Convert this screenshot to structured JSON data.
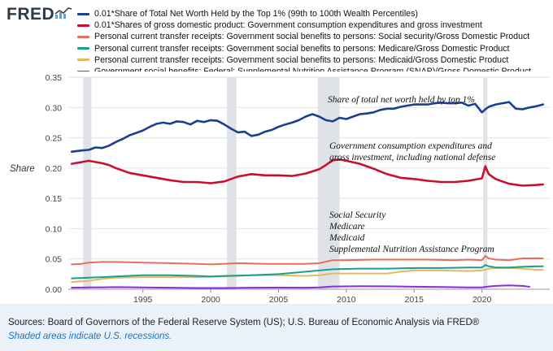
{
  "logo": {
    "text": "FRED",
    "mark": "fred-chart-mark-icon"
  },
  "legend": [
    {
      "label": "0.01*Share of Total Net Worth Held by the Top 1% (99th to 100th Wealth Percentiles)",
      "color": "#1a3f8f"
    },
    {
      "label": "0.01*Shares of gross domestic product: Government consumption expenditures and gross investment",
      "color": "#c8102e"
    },
    {
      "label": "Personal current transfer receipts: Government social benefits to persons: Social security/Gross Domestic Product",
      "color": "#e8705a"
    },
    {
      "label": "Personal current transfer receipts: Government social benefits to persons: Medicare/Gross Domestic Product",
      "color": "#1a9e8f"
    },
    {
      "label": "Personal current transfer receipts: Government social benefits to persons: Medicaid/Gross Domestic Product",
      "color": "#e8b860"
    },
    {
      "label": "Government social benefits: Federal: Supplemental Nutrition Assistance Program (SNAP)/Gross Domestic Product",
      "color": "#8a2be2"
    }
  ],
  "annotations": {
    "top1": "Share of total net worth held by top 1%",
    "gov1": "Government consumption expenditures and",
    "gov2": "gross investment, including national defense",
    "ss": "Social Security",
    "medicare": "Medicare",
    "medicaid": "Medicaid",
    "snap": "Supplemental Nutrition Assistance Program"
  },
  "footer": {
    "source": "Sources: Board of Governors of the Federal Reserve System (US); U.S. Bureau of Economic Analysis via FRED®",
    "shaded_note": "Shaded areas indicate U.S. recessions."
  },
  "chart_data": {
    "type": "line",
    "ylabel": "Share",
    "xlim": [
      1989.5,
      2025.0
    ],
    "ylim": [
      0,
      0.35
    ],
    "x_ticks": [
      1995,
      2000,
      2005,
      2010,
      2015,
      2020
    ],
    "y_ticks": [
      0.0,
      0.05,
      0.1,
      0.15,
      0.2,
      0.25,
      0.3,
      0.35
    ],
    "y_tick_labels": [
      "0.00",
      "0.05",
      "0.10",
      "0.15",
      "0.20",
      "0.25",
      "0.30",
      "0.35"
    ],
    "grid": true,
    "legend_position": "top",
    "recessions": [
      [
        1990.6,
        1991.2
      ],
      [
        2001.2,
        2001.9
      ],
      [
        2007.9,
        2009.5
      ],
      [
        2020.1,
        2020.4
      ]
    ],
    "series": [
      {
        "name": "0.01*Share of Total Net Worth Held by the Top 1% (99th to 100th Wealth Percentiles)",
        "color": "#1a3f8f",
        "points": [
          [
            1989.75,
            0.227
          ],
          [
            1990.5,
            0.229
          ],
          [
            1991.0,
            0.23
          ],
          [
            1991.5,
            0.234
          ],
          [
            1992.0,
            0.233
          ],
          [
            1992.5,
            0.237
          ],
          [
            1993.0,
            0.243
          ],
          [
            1993.5,
            0.248
          ],
          [
            1994.0,
            0.254
          ],
          [
            1994.5,
            0.258
          ],
          [
            1995.0,
            0.262
          ],
          [
            1995.5,
            0.268
          ],
          [
            1996.0,
            0.273
          ],
          [
            1996.5,
            0.275
          ],
          [
            1997.0,
            0.273
          ],
          [
            1997.5,
            0.277
          ],
          [
            1998.0,
            0.276
          ],
          [
            1998.5,
            0.272
          ],
          [
            1999.0,
            0.278
          ],
          [
            1999.5,
            0.276
          ],
          [
            2000.0,
            0.279
          ],
          [
            2000.5,
            0.278
          ],
          [
            2001.0,
            0.272
          ],
          [
            2001.5,
            0.265
          ],
          [
            2002.0,
            0.259
          ],
          [
            2002.5,
            0.26
          ],
          [
            2003.0,
            0.253
          ],
          [
            2003.5,
            0.255
          ],
          [
            2004.0,
            0.26
          ],
          [
            2004.5,
            0.263
          ],
          [
            2005.0,
            0.268
          ],
          [
            2005.5,
            0.272
          ],
          [
            2006.0,
            0.275
          ],
          [
            2006.5,
            0.279
          ],
          [
            2007.0,
            0.285
          ],
          [
            2007.5,
            0.289
          ],
          [
            2008.0,
            0.285
          ],
          [
            2008.5,
            0.279
          ],
          [
            2009.0,
            0.277
          ],
          [
            2009.5,
            0.283
          ],
          [
            2010.0,
            0.281
          ],
          [
            2010.5,
            0.285
          ],
          [
            2011.0,
            0.289
          ],
          [
            2011.5,
            0.29
          ],
          [
            2012.0,
            0.292
          ],
          [
            2012.5,
            0.296
          ],
          [
            2013.0,
            0.298
          ],
          [
            2013.5,
            0.298
          ],
          [
            2014.0,
            0.301
          ],
          [
            2014.5,
            0.303
          ],
          [
            2015.0,
            0.305
          ],
          [
            2015.5,
            0.305
          ],
          [
            2016.0,
            0.305
          ],
          [
            2016.5,
            0.307
          ],
          [
            2017.0,
            0.308
          ],
          [
            2017.5,
            0.307
          ],
          [
            2018.0,
            0.307
          ],
          [
            2018.5,
            0.308
          ],
          [
            2019.0,
            0.303
          ],
          [
            2019.5,
            0.306
          ],
          [
            2020.0,
            0.292
          ],
          [
            2020.25,
            0.297
          ],
          [
            2020.5,
            0.301
          ],
          [
            2021.0,
            0.305
          ],
          [
            2021.5,
            0.307
          ],
          [
            2022.0,
            0.309
          ],
          [
            2022.5,
            0.298
          ],
          [
            2023.0,
            0.297
          ],
          [
            2023.5,
            0.3
          ],
          [
            2024.0,
            0.302
          ],
          [
            2024.5,
            0.305
          ]
        ]
      },
      {
        "name": "0.01*Shares of gross domestic product: Government consumption expenditures and gross investment",
        "color": "#c8102e",
        "points": [
          [
            1989.75,
            0.207
          ],
          [
            1990.5,
            0.21
          ],
          [
            1991.0,
            0.212
          ],
          [
            1991.5,
            0.21
          ],
          [
            1992.0,
            0.208
          ],
          [
            1992.5,
            0.205
          ],
          [
            1993.0,
            0.2
          ],
          [
            1993.5,
            0.196
          ],
          [
            1994.0,
            0.192
          ],
          [
            1994.5,
            0.19
          ],
          [
            1995.0,
            0.188
          ],
          [
            1996.0,
            0.184
          ],
          [
            1997.0,
            0.18
          ],
          [
            1998.0,
            0.177
          ],
          [
            1999.0,
            0.177
          ],
          [
            2000.0,
            0.175
          ],
          [
            2001.0,
            0.178
          ],
          [
            2001.5,
            0.182
          ],
          [
            2002.0,
            0.186
          ],
          [
            2003.0,
            0.19
          ],
          [
            2004.0,
            0.188
          ],
          [
            2005.0,
            0.188
          ],
          [
            2006.0,
            0.187
          ],
          [
            2007.0,
            0.191
          ],
          [
            2008.0,
            0.198
          ],
          [
            2008.5,
            0.205
          ],
          [
            2009.0,
            0.213
          ],
          [
            2009.5,
            0.214
          ],
          [
            2010.0,
            0.212
          ],
          [
            2011.0,
            0.207
          ],
          [
            2012.0,
            0.199
          ],
          [
            2013.0,
            0.19
          ],
          [
            2014.0,
            0.184
          ],
          [
            2015.0,
            0.182
          ],
          [
            2016.0,
            0.179
          ],
          [
            2017.0,
            0.177
          ],
          [
            2018.0,
            0.177
          ],
          [
            2019.0,
            0.179
          ],
          [
            2020.0,
            0.183
          ],
          [
            2020.25,
            0.203
          ],
          [
            2020.5,
            0.19
          ],
          [
            2021.0,
            0.182
          ],
          [
            2022.0,
            0.174
          ],
          [
            2023.0,
            0.171
          ],
          [
            2024.0,
            0.172
          ],
          [
            2024.5,
            0.173
          ]
        ]
      },
      {
        "name": "Personal current transfer receipts: Government social benefits to persons: Social security/Gross Domestic Product",
        "color": "#e8705a",
        "points": [
          [
            1989.75,
            0.041
          ],
          [
            1990.5,
            0.042
          ],
          [
            1991.0,
            0.044
          ],
          [
            1992.0,
            0.045
          ],
          [
            1993.0,
            0.045
          ],
          [
            1995.0,
            0.044
          ],
          [
            1997.0,
            0.043
          ],
          [
            1999.0,
            0.042
          ],
          [
            2000.0,
            0.041
          ],
          [
            2001.0,
            0.042
          ],
          [
            2002.0,
            0.043
          ],
          [
            2004.0,
            0.042
          ],
          [
            2006.0,
            0.042
          ],
          [
            2007.0,
            0.042
          ],
          [
            2008.0,
            0.043
          ],
          [
            2009.0,
            0.048
          ],
          [
            2010.0,
            0.048
          ],
          [
            2012.0,
            0.049
          ],
          [
            2014.0,
            0.049
          ],
          [
            2016.0,
            0.049
          ],
          [
            2018.0,
            0.048
          ],
          [
            2019.0,
            0.049
          ],
          [
            2020.0,
            0.048
          ],
          [
            2020.25,
            0.055
          ],
          [
            2020.5,
            0.051
          ],
          [
            2021.0,
            0.049
          ],
          [
            2022.0,
            0.048
          ],
          [
            2023.0,
            0.051
          ],
          [
            2024.0,
            0.051
          ],
          [
            2024.5,
            0.051
          ]
        ]
      },
      {
        "name": "Personal current transfer receipts: Government social benefits to persons: Medicare/Gross Domestic Product",
        "color": "#1a9e8f",
        "points": [
          [
            1989.75,
            0.018
          ],
          [
            1991.0,
            0.019
          ],
          [
            1993.0,
            0.021
          ],
          [
            1995.0,
            0.023
          ],
          [
            1997.0,
            0.023
          ],
          [
            1999.0,
            0.022
          ],
          [
            2000.0,
            0.021
          ],
          [
            2001.0,
            0.022
          ],
          [
            2003.0,
            0.023
          ],
          [
            2005.0,
            0.025
          ],
          [
            2006.0,
            0.027
          ],
          [
            2007.0,
            0.029
          ],
          [
            2008.0,
            0.031
          ],
          [
            2009.0,
            0.033
          ],
          [
            2011.0,
            0.034
          ],
          [
            2013.0,
            0.034
          ],
          [
            2015.0,
            0.035
          ],
          [
            2017.0,
            0.035
          ],
          [
            2019.0,
            0.036
          ],
          [
            2020.0,
            0.036
          ],
          [
            2020.25,
            0.04
          ],
          [
            2020.5,
            0.038
          ],
          [
            2021.0,
            0.036
          ],
          [
            2022.0,
            0.036
          ],
          [
            2023.0,
            0.037
          ],
          [
            2024.0,
            0.038
          ],
          [
            2024.5,
            0.038
          ]
        ]
      },
      {
        "name": "Personal current transfer receipts: Government social benefits to persons: Medicaid/Gross Domestic Product",
        "color": "#e8b860",
        "points": [
          [
            1989.75,
            0.012
          ],
          [
            1991.0,
            0.014
          ],
          [
            1992.0,
            0.017
          ],
          [
            1993.0,
            0.019
          ],
          [
            1995.0,
            0.02
          ],
          [
            1997.0,
            0.02
          ],
          [
            1999.0,
            0.02
          ],
          [
            2001.0,
            0.021
          ],
          [
            2003.0,
            0.023
          ],
          [
            2005.0,
            0.023
          ],
          [
            2007.0,
            0.022
          ],
          [
            2008.0,
            0.023
          ],
          [
            2009.0,
            0.026
          ],
          [
            2011.0,
            0.026
          ],
          [
            2013.0,
            0.026
          ],
          [
            2014.0,
            0.029
          ],
          [
            2015.0,
            0.031
          ],
          [
            2017.0,
            0.031
          ],
          [
            2019.0,
            0.03
          ],
          [
            2020.0,
            0.031
          ],
          [
            2020.5,
            0.034
          ],
          [
            2021.0,
            0.035
          ],
          [
            2022.0,
            0.035
          ],
          [
            2023.0,
            0.034
          ],
          [
            2024.0,
            0.032
          ],
          [
            2024.5,
            0.032
          ]
        ]
      },
      {
        "name": "Government social benefits: Federal: Supplemental Nutrition Assistance Program (SNAP)/Gross Domestic Product",
        "color": "#8a2be2",
        "points": [
          [
            1989.75,
            0.0025
          ],
          [
            1991.0,
            0.003
          ],
          [
            1993.0,
            0.0035
          ],
          [
            1995.0,
            0.003
          ],
          [
            1997.0,
            0.0025
          ],
          [
            1999.0,
            0.002
          ],
          [
            2001.0,
            0.002
          ],
          [
            2003.0,
            0.0025
          ],
          [
            2005.0,
            0.0027
          ],
          [
            2007.0,
            0.0025
          ],
          [
            2008.0,
            0.003
          ],
          [
            2009.0,
            0.0045
          ],
          [
            2011.0,
            0.005
          ],
          [
            2013.0,
            0.0048
          ],
          [
            2015.0,
            0.0042
          ],
          [
            2017.0,
            0.0037
          ],
          [
            2019.0,
            0.0029
          ],
          [
            2020.0,
            0.003
          ],
          [
            2020.5,
            0.0045
          ],
          [
            2021.0,
            0.0055
          ],
          [
            2022.0,
            0.0065
          ],
          [
            2023.0,
            0.0055
          ],
          [
            2023.5,
            0.004
          ]
        ]
      }
    ]
  }
}
